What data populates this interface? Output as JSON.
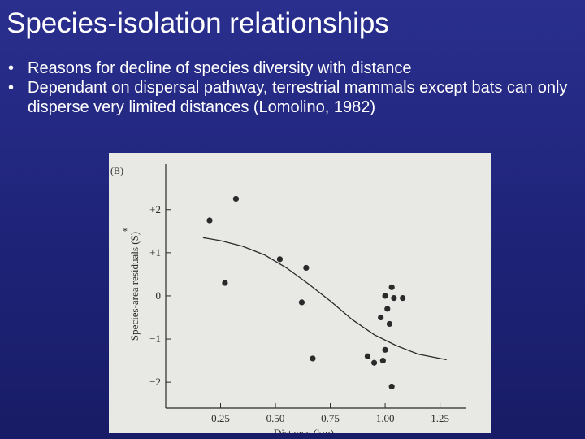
{
  "slide": {
    "title": "Species-isolation relationships",
    "bullets": [
      {
        "marker": "•",
        "text": "Reasons for decline of species diversity with distance"
      },
      {
        "marker": "•",
        "text": "Dependant on dispersal pathway, terrestrial mammals except bats can only disperse very limited distances (Lomolino, 1982)"
      }
    ]
  },
  "colors": {
    "background": "#1e2378",
    "text": "#ffffff",
    "figure_bg": "#e8e8e4",
    "ink": "#2a2a2a"
  },
  "chart_data": {
    "type": "scatter",
    "panel_label": "(B)",
    "xlabel": "Distance (km)",
    "ylabel": "Species-area residuals (S)",
    "ylabel_marker": "*",
    "xlim": [
      0.0,
      1.37
    ],
    "ylim": [
      -2.6,
      3.05
    ],
    "x_ticks": [
      0.25,
      0.5,
      0.75,
      1.0,
      1.25
    ],
    "x_tick_labels": [
      "0.25",
      "0.50",
      "0.75",
      "1.00",
      "1.25"
    ],
    "y_ticks": [
      2,
      1,
      0,
      -1,
      -2
    ],
    "y_tick_labels": [
      "+2",
      "+1",
      "0",
      "−1",
      "−2"
    ],
    "grid": false,
    "points": [
      {
        "x": 0.2,
        "y": 1.75
      },
      {
        "x": 0.32,
        "y": 2.25
      },
      {
        "x": 0.27,
        "y": 0.3
      },
      {
        "x": 0.52,
        "y": 0.85
      },
      {
        "x": 0.64,
        "y": 0.65
      },
      {
        "x": 0.62,
        "y": -0.15
      },
      {
        "x": 0.67,
        "y": -1.45
      },
      {
        "x": 0.92,
        "y": -1.4
      },
      {
        "x": 0.95,
        "y": -1.55
      },
      {
        "x": 0.98,
        "y": -0.5
      },
      {
        "x": 1.0,
        "y": 0.0
      },
      {
        "x": 1.01,
        "y": -0.3
      },
      {
        "x": 1.03,
        "y": 0.2
      },
      {
        "x": 1.04,
        "y": -0.05
      },
      {
        "x": 1.08,
        "y": -0.05
      },
      {
        "x": 1.02,
        "y": -0.65
      },
      {
        "x": 1.0,
        "y": -1.25
      },
      {
        "x": 0.99,
        "y": -1.5
      },
      {
        "x": 1.03,
        "y": -2.1
      }
    ],
    "fit_curve": {
      "x": [
        0.17,
        0.25,
        0.35,
        0.45,
        0.55,
        0.65,
        0.75,
        0.85,
        0.95,
        1.05,
        1.15,
        1.28
      ],
      "y": [
        1.35,
        1.28,
        1.15,
        0.95,
        0.65,
        0.28,
        -0.12,
        -0.55,
        -0.9,
        -1.15,
        -1.35,
        -1.48
      ]
    }
  }
}
